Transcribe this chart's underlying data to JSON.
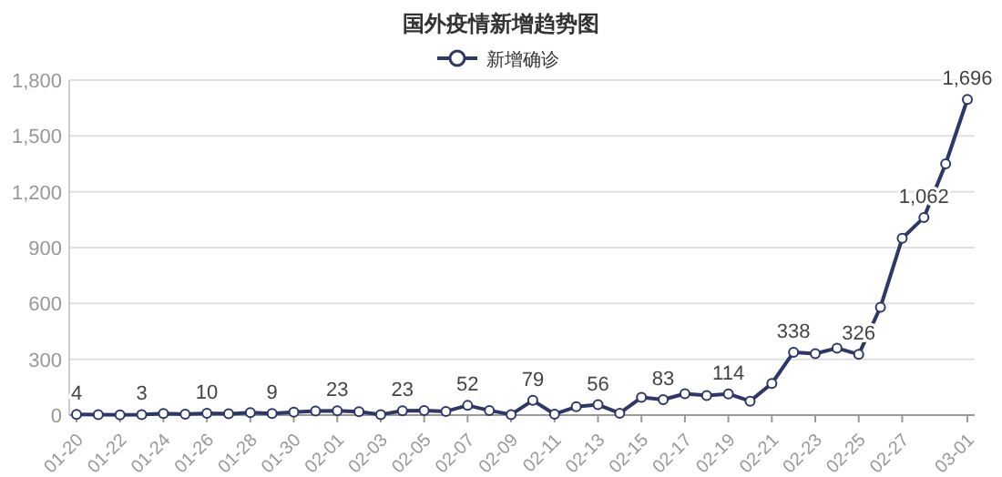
{
  "chart_data": {
    "type": "line",
    "title": "国外疫情新增趋势图",
    "legend": "top",
    "grid": "y",
    "marker": "circle",
    "line_style": "solid",
    "categories": [
      "01-20",
      null,
      "01-22",
      null,
      "01-24",
      null,
      "01-26",
      null,
      "01-28",
      null,
      "01-30",
      null,
      "02-01",
      null,
      "02-03",
      null,
      "02-05",
      null,
      "02-07",
      null,
      "02-09",
      null,
      "02-11",
      null,
      "02-13",
      null,
      "02-15",
      null,
      "02-17",
      null,
      "02-19",
      null,
      "02-21",
      null,
      "02-23",
      null,
      "02-25",
      null,
      "02-27",
      null,
      null,
      "03-01"
    ],
    "ylim": [
      0,
      1800
    ],
    "yticks": [
      0,
      {
        "value": 300,
        "label": "300"
      },
      {
        "value": 600,
        "label": "600"
      },
      {
        "value": 900,
        "label": "900"
      },
      {
        "value": 1200,
        "label": "1,200"
      },
      {
        "value": 1500,
        "label": "1,500"
      },
      {
        "value": 1800,
        "label": "1,800"
      }
    ],
    "series": [
      {
        "name": "新增确诊",
        "color": "#2e3868",
        "values": [
          4,
          3,
          1,
          3,
          8,
          5,
          10,
          7,
          14,
          9,
          16,
          22,
          23,
          18,
          3,
          23,
          24,
          20,
          52,
          25,
          3,
          79,
          5,
          45,
          56,
          10,
          95,
          83,
          115,
          105,
          114,
          75,
          170,
          338,
          330,
          360,
          326,
          580,
          950,
          1062,
          1350,
          1696
        ],
        "value_labels": [
          "4",
          null,
          null,
          "3",
          null,
          null,
          "10",
          null,
          null,
          "9",
          null,
          null,
          "23",
          null,
          null,
          "23",
          null,
          null,
          "52",
          null,
          null,
          "79",
          null,
          null,
          "56",
          null,
          null,
          "83",
          null,
          null,
          "114",
          null,
          null,
          "338",
          null,
          null,
          "326",
          null,
          null,
          "1,062",
          null,
          "1,696"
        ]
      }
    ]
  }
}
